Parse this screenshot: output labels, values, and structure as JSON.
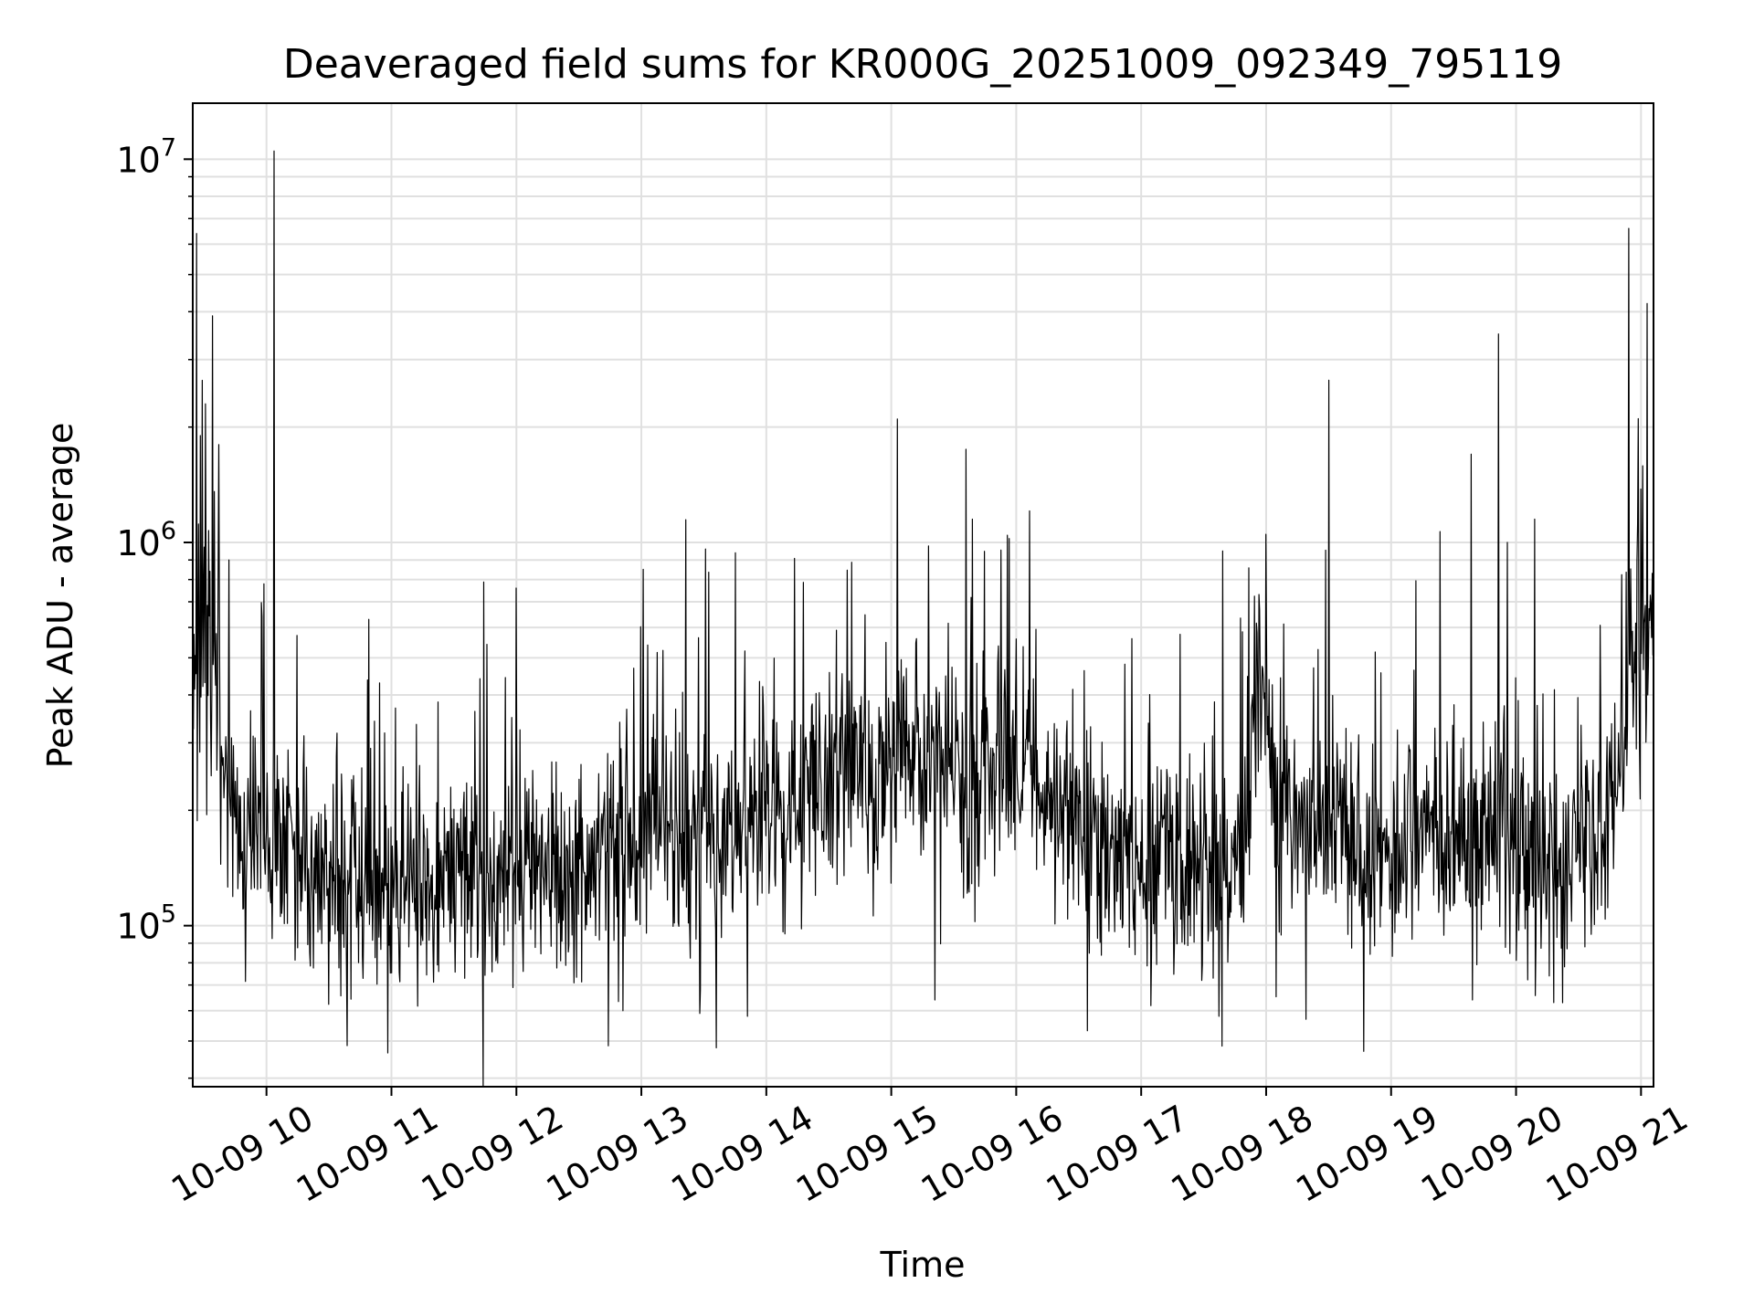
{
  "chart_data": {
    "type": "line",
    "title": "Deaveraged field sums for KR000G_20251009_092349_795119",
    "xlabel": "Time",
    "ylabel": "Peak ADU - average",
    "yscale": "log",
    "ylim": [
      38000,
      14000000
    ],
    "xlim_hours": [
      9.41,
      21.1
    ],
    "grid": true,
    "x_ticks": [
      {
        "label": "10-09 10",
        "hour": 10
      },
      {
        "label": "10-09 11",
        "hour": 11
      },
      {
        "label": "10-09 12",
        "hour": 12
      },
      {
        "label": "10-09 13",
        "hour": 13
      },
      {
        "label": "10-09 14",
        "hour": 14
      },
      {
        "label": "10-09 15",
        "hour": 15
      },
      {
        "label": "10-09 16",
        "hour": 16
      },
      {
        "label": "10-09 17",
        "hour": 17
      },
      {
        "label": "10-09 18",
        "hour": 18
      },
      {
        "label": "10-09 19",
        "hour": 19
      },
      {
        "label": "10-09 20",
        "hour": 20
      },
      {
        "label": "10-09 21",
        "hour": 21
      }
    ],
    "y_ticks": [
      {
        "base": "10",
        "exp": "5",
        "value": 100000
      },
      {
        "base": "10",
        "exp": "6",
        "value": 1000000
      },
      {
        "base": "10",
        "exp": "7",
        "value": 10000000
      }
    ],
    "baseline": [
      [
        9.41,
        600000
      ],
      [
        9.55,
        500000
      ],
      [
        9.65,
        250000
      ],
      [
        9.8,
        180000
      ],
      [
        10.0,
        160000
      ],
      [
        10.3,
        145000
      ],
      [
        10.6,
        135000
      ],
      [
        11.0,
        130000
      ],
      [
        11.4,
        128000
      ],
      [
        11.8,
        130000
      ],
      [
        12.2,
        135000
      ],
      [
        12.5,
        145000
      ],
      [
        12.75,
        170000
      ],
      [
        13.0,
        180000
      ],
      [
        13.3,
        170000
      ],
      [
        13.6,
        165000
      ],
      [
        13.9,
        175000
      ],
      [
        14.2,
        190000
      ],
      [
        14.5,
        250000
      ],
      [
        14.8,
        260000
      ],
      [
        15.0,
        280000
      ],
      [
        15.3,
        290000
      ],
      [
        15.6,
        230000
      ],
      [
        15.9,
        260000
      ],
      [
        16.05,
        300000
      ],
      [
        16.2,
        220000
      ],
      [
        16.4,
        200000
      ],
      [
        16.6,
        180000
      ],
      [
        16.8,
        170000
      ],
      [
        17.0,
        150000
      ],
      [
        17.3,
        160000
      ],
      [
        17.6,
        140000
      ],
      [
        17.8,
        160000
      ],
      [
        17.92,
        450000
      ],
      [
        18.0,
        500000
      ],
      [
        18.05,
        200000
      ],
      [
        18.3,
        180000
      ],
      [
        18.6,
        190000
      ],
      [
        18.8,
        140000
      ],
      [
        19.0,
        150000
      ],
      [
        19.3,
        170000
      ],
      [
        19.6,
        160000
      ],
      [
        19.9,
        190000
      ],
      [
        20.1,
        140000
      ],
      [
        20.4,
        160000
      ],
      [
        20.7,
        180000
      ],
      [
        20.85,
        230000
      ],
      [
        20.95,
        600000
      ],
      [
        21.1,
        800000
      ]
    ],
    "spikes": [
      [
        9.44,
        6400000
      ],
      [
        9.47,
        1900000
      ],
      [
        9.51,
        2300000
      ],
      [
        9.57,
        3900000
      ],
      [
        9.62,
        1800000
      ],
      [
        9.7,
        900000
      ],
      [
        9.98,
        780000
      ],
      [
        10.06,
        10500000
      ],
      [
        10.82,
        630000
      ],
      [
        12.0,
        760000
      ],
      [
        13.75,
        940000
      ],
      [
        15.05,
        2100000
      ],
      [
        15.6,
        1750000
      ],
      [
        15.65,
        1150000
      ],
      [
        16.0,
        560000
      ],
      [
        17.65,
        950000
      ],
      [
        18.0,
        1050000
      ],
      [
        18.5,
        2650000
      ],
      [
        19.64,
        1700000
      ],
      [
        19.86,
        3500000
      ],
      [
        19.93,
        1000000
      ],
      [
        20.15,
        1150000
      ],
      [
        20.9,
        6600000
      ],
      [
        21.05,
        4200000
      ]
    ],
    "dips": [
      [
        12.85,
        60000
      ],
      [
        13.6,
        48000
      ],
      [
        13.85,
        58000
      ],
      [
        15.35,
        64000
      ],
      [
        17.62,
        58000
      ],
      [
        18.32,
        57000
      ],
      [
        18.78,
        47000
      ],
      [
        19.65,
        64000
      ],
      [
        20.3,
        63000
      ]
    ]
  }
}
